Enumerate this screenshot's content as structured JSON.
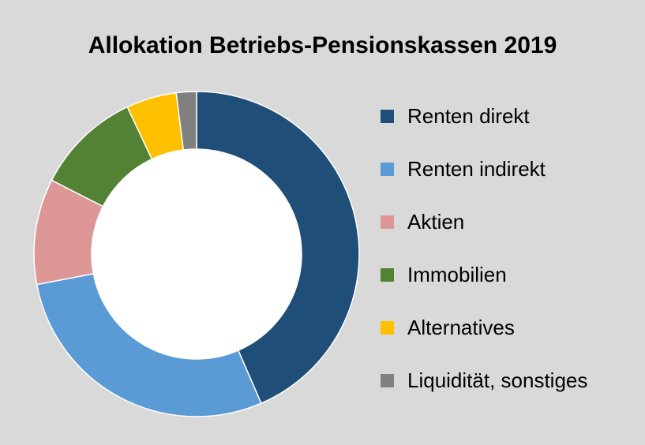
{
  "chart_data": {
    "type": "pie",
    "variant": "donut",
    "title": "Allokation Betriebs-Pensionskassen 2019",
    "categories": [
      "Renten direkt",
      "Renten indirekt",
      "Aktien",
      "Immobilien",
      "Alternatives",
      "Liquidität, sonstiges"
    ],
    "values": [
      43.5,
      28.5,
      10.5,
      10.5,
      5.0,
      2.0
    ],
    "unit": "%",
    "colors": [
      "#1f4e79",
      "#5b9bd5",
      "#dc9696",
      "#548235",
      "#ffc000",
      "#808080"
    ],
    "legend_position": "right",
    "start_angle": "12 o'clock",
    "direction": "clockwise"
  }
}
